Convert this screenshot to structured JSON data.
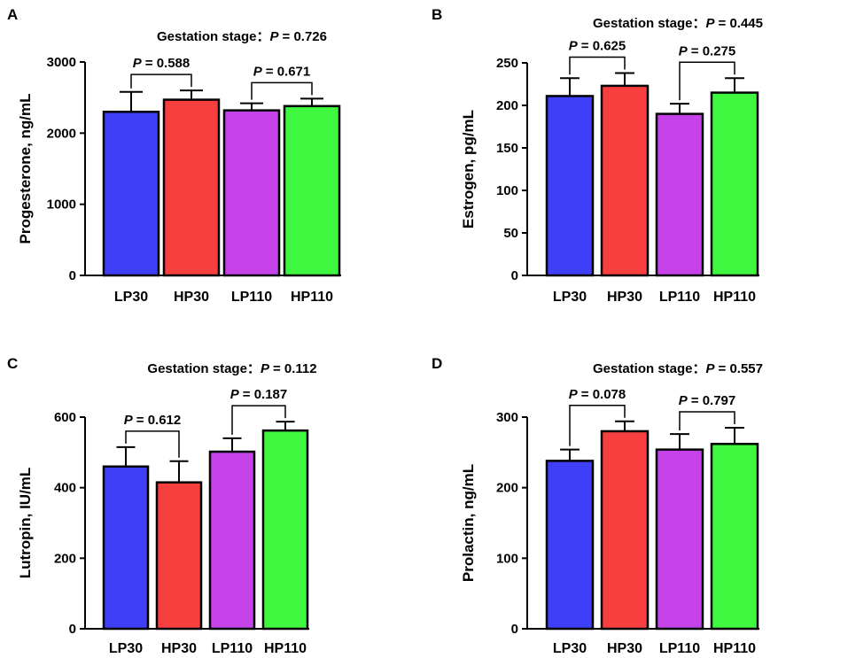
{
  "chart_data": [
    {
      "type": "bar",
      "panel": "A",
      "title_label": "Gestation stage：",
      "title_p": "P",
      "title_value": "= 0.726",
      "ylabel": "Progesterone, ng/mL",
      "ylim": [
        0,
        3000
      ],
      "yticks": [
        0,
        1000,
        2000,
        3000
      ],
      "categories": [
        "LP30",
        "HP30",
        "LP110",
        "HP110"
      ],
      "values": [
        2300,
        2470,
        2320,
        2380
      ],
      "errors": [
        280,
        130,
        100,
        105
      ],
      "colors": [
        "#3f3ff7",
        "#f73f3f",
        "#c542e9",
        "#3ff73f"
      ],
      "comparisons": [
        {
          "from": 0,
          "to": 1,
          "p": "P",
          "text": "= 0.588"
        },
        {
          "from": 2,
          "to": 3,
          "p": "P",
          "text": "= 0.671"
        }
      ]
    },
    {
      "type": "bar",
      "panel": "B",
      "title_label": "Gestation stage：",
      "title_p": "P",
      "title_value": "= 0.445",
      "ylabel": "Estrogen, pg/mL",
      "ylim": [
        0,
        250
      ],
      "yticks": [
        0,
        50,
        100,
        150,
        200,
        250
      ],
      "categories": [
        "LP30",
        "HP30",
        "LP110",
        "HP110"
      ],
      "values": [
        211,
        223,
        190,
        215
      ],
      "errors": [
        21,
        15,
        12,
        17
      ],
      "colors": [
        "#3f3ff7",
        "#f73f3f",
        "#c542e9",
        "#3ff73f"
      ],
      "comparisons": [
        {
          "from": 0,
          "to": 1,
          "p": "P",
          "text": "= 0.625"
        },
        {
          "from": 2,
          "to": 3,
          "p": "P",
          "text": "= 0.275"
        }
      ]
    },
    {
      "type": "bar",
      "panel": "C",
      "title_label": "Gestation stage：",
      "title_p": "P",
      "title_value": "= 0.112",
      "ylabel": "Lutropin, IU/mL",
      "ylim": [
        0,
        600
      ],
      "yticks": [
        0,
        200,
        400,
        600
      ],
      "categories": [
        "LP30",
        "HP30",
        "LP110",
        "HP110"
      ],
      "values": [
        460,
        415,
        502,
        562
      ],
      "errors": [
        55,
        60,
        38,
        25
      ],
      "colors": [
        "#3f3ff7",
        "#f73f3f",
        "#c542e9",
        "#3ff73f"
      ],
      "comparisons": [
        {
          "from": 0,
          "to": 1,
          "p": "P",
          "text": "= 0.612"
        },
        {
          "from": 2,
          "to": 3,
          "p": "P",
          "text": "= 0.187"
        }
      ]
    },
    {
      "type": "bar",
      "panel": "D",
      "title_label": "Gestation stage：",
      "title_p": "P",
      "title_value": "= 0.557",
      "ylabel": "Prolactin, ng/mL",
      "ylim": [
        0,
        300
      ],
      "yticks": [
        0,
        100,
        200,
        300
      ],
      "categories": [
        "LP30",
        "HP30",
        "LP110",
        "HP110"
      ],
      "values": [
        238,
        280,
        254,
        262
      ],
      "errors": [
        16,
        14,
        22,
        23
      ],
      "colors": [
        "#3f3ff7",
        "#f73f3f",
        "#c542e9",
        "#3ff73f"
      ],
      "comparisons": [
        {
          "from": 0,
          "to": 1,
          "p": "P",
          "text": "= 0.078"
        },
        {
          "from": 2,
          "to": 3,
          "p": "P",
          "text": "= 0.797"
        }
      ]
    }
  ]
}
